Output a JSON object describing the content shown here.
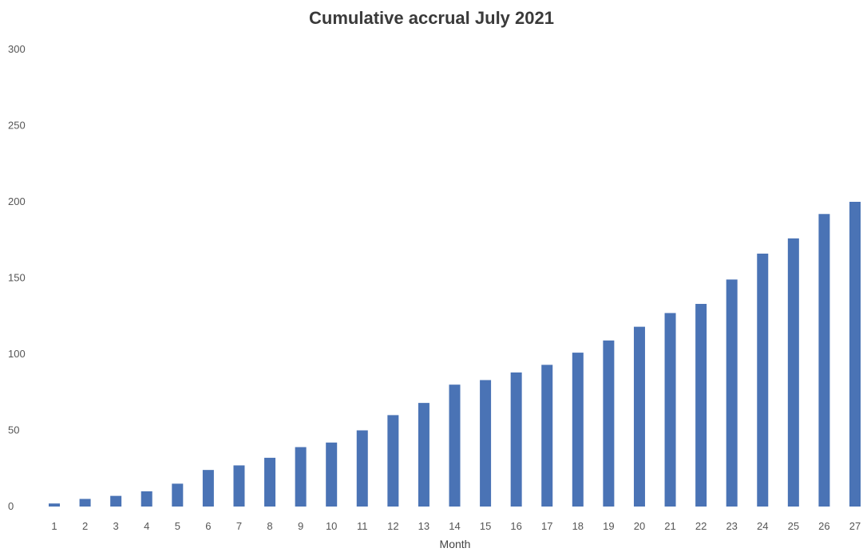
{
  "chart_data": {
    "type": "bar",
    "title": "Cumulative accrual July 2021",
    "xlabel": "Month",
    "ylabel": "",
    "ylim": [
      0,
      300
    ],
    "yticks": [
      0,
      50,
      100,
      150,
      200,
      250,
      300
    ],
    "grid": false,
    "legend": "none",
    "bar_color": "#4a73b5",
    "categories": [
      "1",
      "2",
      "3",
      "4",
      "5",
      "6",
      "7",
      "8",
      "9",
      "10",
      "11",
      "12",
      "13",
      "14",
      "15",
      "16",
      "17",
      "18",
      "19",
      "20",
      "21",
      "22",
      "23",
      "24",
      "25",
      "26",
      "27"
    ],
    "values": [
      2,
      5,
      7,
      10,
      15,
      24,
      27,
      32,
      39,
      42,
      50,
      60,
      68,
      80,
      83,
      88,
      93,
      101,
      109,
      118,
      127,
      133,
      149,
      166,
      176,
      192,
      200
    ]
  }
}
